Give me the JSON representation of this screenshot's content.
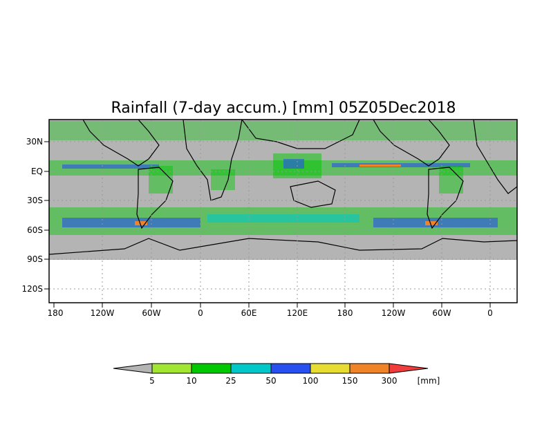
{
  "map": {
    "title": "Rainfall (7-day accum.) [mm] 05Z05Dec2018",
    "lat_labels": [
      "30N",
      "EQ",
      "30S",
      "60S",
      "90S",
      "120S"
    ],
    "lon_labels": [
      "180",
      "120W",
      "60W",
      "0",
      "60E",
      "120E",
      "180",
      "120W",
      "60W",
      "0"
    ],
    "projection": "cylindrical, longitude extends past 360 degrees",
    "background_color": "#b4b4b4",
    "missing_region_color": "#ffffff",
    "coastline_color": "#000000"
  },
  "legend": {
    "ticks": [
      "5",
      "10",
      "25",
      "50",
      "100",
      "150",
      "300"
    ],
    "unit": "[mm]",
    "colors": [
      "#b4b4b4",
      "#a0e632",
      "#00c800",
      "#00c8c8",
      "#2850f0",
      "#e6dc32",
      "#f08228",
      "#f03c3c"
    ]
  }
}
